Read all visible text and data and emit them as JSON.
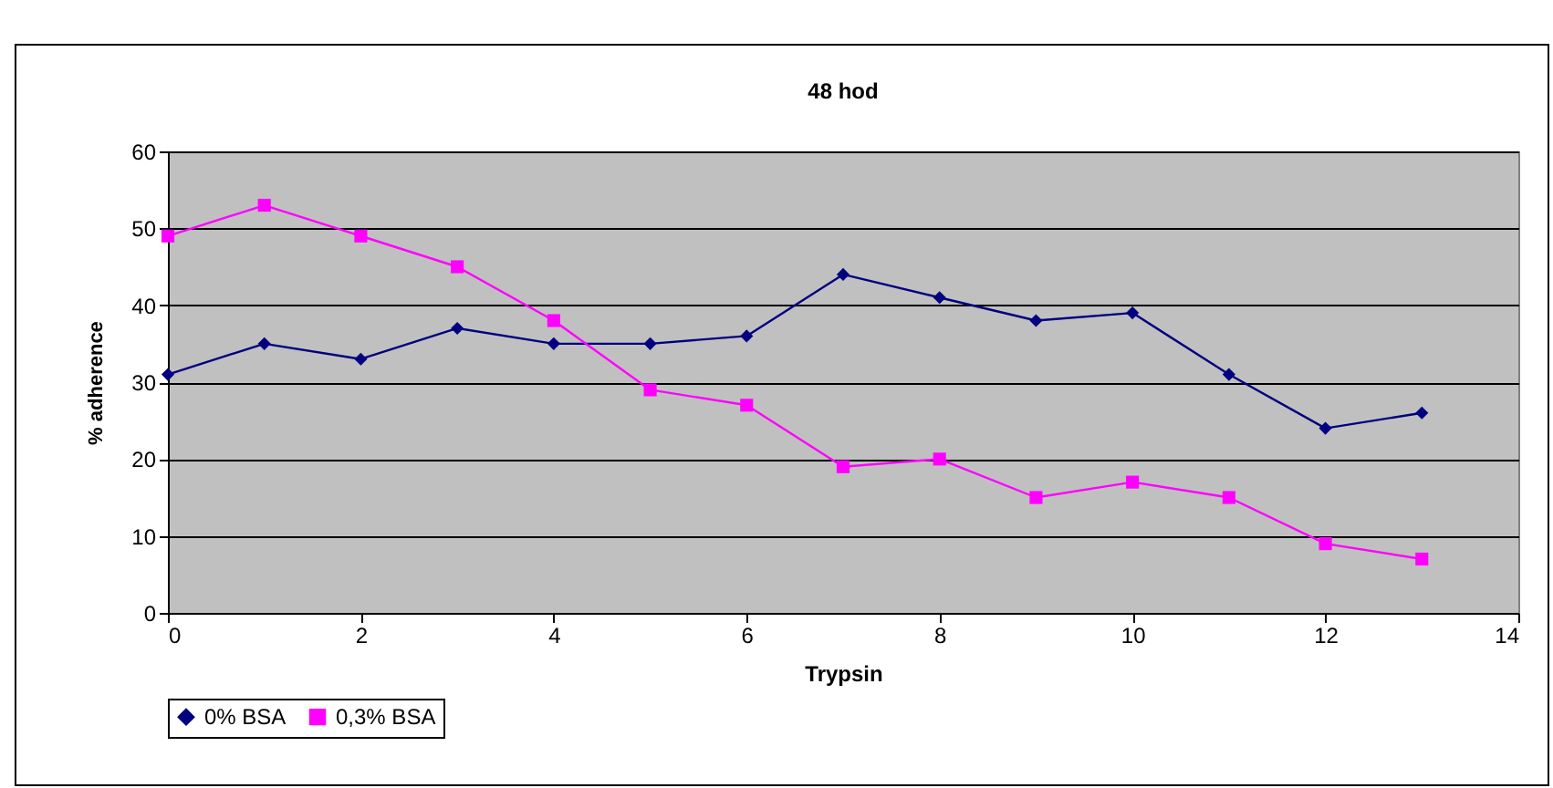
{
  "chart_data": {
    "type": "line",
    "title": "48 hod",
    "xlabel": "Trypsin",
    "ylabel": "% adherence",
    "x": [
      0,
      1,
      2,
      3,
      4,
      5,
      6,
      7,
      8,
      9,
      10,
      11,
      12,
      13
    ],
    "series": [
      {
        "name": "0% BSA",
        "color": "#000080",
        "marker": "diamond",
        "values": [
          31,
          35,
          33,
          37,
          35,
          35,
          36,
          44,
          41,
          38,
          39,
          31,
          24,
          26
        ]
      },
      {
        "name": "0,3% BSA",
        "color": "#ff00ff",
        "marker": "square",
        "values": [
          49,
          53,
          49,
          45,
          38,
          29,
          27,
          19,
          20,
          15,
          17,
          15,
          9,
          7
        ]
      }
    ],
    "xlim": [
      0,
      14
    ],
    "xticks": [
      0,
      2,
      4,
      6,
      8,
      10,
      12,
      14
    ],
    "ylim": [
      0,
      60
    ],
    "yticks": [
      0,
      10,
      20,
      30,
      40,
      50,
      60
    ],
    "grid": "y",
    "legend": "bottom"
  }
}
